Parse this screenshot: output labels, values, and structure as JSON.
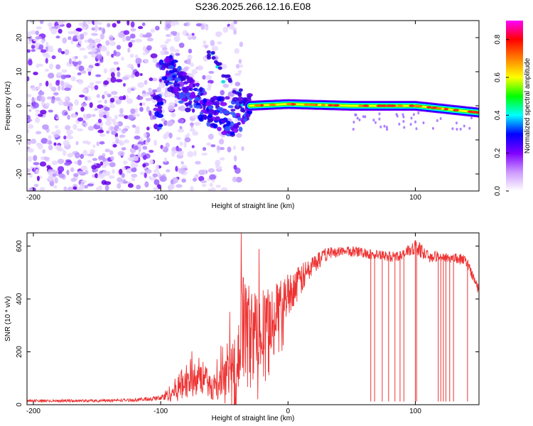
{
  "title": "S236.2025.266.12.16.E08",
  "chart_data": [
    {
      "type": "heatmap",
      "title": "S236.2025.266.12.16.E08",
      "xlabel": "Height of straight line (km)",
      "ylabel": "Frequency (Hz)",
      "xlim": [
        -205,
        150
      ],
      "ylim": [
        -25,
        25
      ],
      "xticks": [
        -200,
        -100,
        0,
        100
      ],
      "yticks": [
        -20,
        -10,
        0,
        10,
        20
      ],
      "colorbar": {
        "label": "Normalized spectral amplitude",
        "range": [
          0.0,
          0.9
        ],
        "ticks": [
          0.0,
          0.2,
          0.4,
          0.6,
          0.8
        ],
        "colors": [
          "#ffffff",
          "#cc99ff",
          "#7f00ff",
          "#0000ff",
          "#00ffff",
          "#00ff00",
          "#ffff00",
          "#ff8000",
          "#ff0000",
          "#ff00ff"
        ]
      },
      "features": {
        "noise_region_x": [
          -205,
          -35
        ],
        "noise_freq_range": [
          -25,
          25
        ],
        "tone_track": [
          {
            "x": -100,
            "f": 12
          },
          {
            "x": -90,
            "f": 9
          },
          {
            "x": -80,
            "f": 4
          },
          {
            "x": -70,
            "f": 1
          },
          {
            "x": -60,
            "f": -1
          },
          {
            "x": -50,
            "f": -3
          },
          {
            "x": -45,
            "f": -4
          },
          {
            "x": -35,
            "f": -2
          },
          {
            "x": -30,
            "f": 0
          },
          {
            "x": 0,
            "f": 0.5
          },
          {
            "x": 50,
            "f": 0
          },
          {
            "x": 100,
            "f": 0
          },
          {
            "x": 150,
            "f": -2
          }
        ],
        "side_branch": [
          {
            "x": -60,
            "f": 15
          },
          {
            "x": -55,
            "f": 12
          },
          {
            "x": -48,
            "f": 8
          },
          {
            "x": -40,
            "f": 4
          },
          {
            "x": -35,
            "f": 1
          }
        ]
      }
    },
    {
      "type": "line",
      "xlabel": "Height of straight line (km)",
      "ylabel": "SNR (10 * v/v)",
      "xlim": [
        -205,
        150
      ],
      "ylim": [
        0,
        650
      ],
      "xticks": [
        -200,
        -100,
        0,
        100
      ],
      "yticks": [
        0,
        200,
        400,
        600
      ],
      "series": [
        {
          "name": "SNR",
          "color": "#ee3333",
          "x": [
            -205,
            -150,
            -120,
            -100,
            -90,
            -80,
            -70,
            -60,
            -50,
            -40,
            -35,
            -30,
            -25,
            -20,
            -10,
            0,
            10,
            20,
            30,
            40,
            50,
            60,
            70,
            80,
            90,
            100,
            110,
            120,
            130,
            140,
            145,
            150
          ],
          "y": [
            15,
            15,
            18,
            25,
            50,
            90,
            120,
            60,
            80,
            150,
            300,
            250,
            280,
            300,
            350,
            420,
            470,
            530,
            570,
            580,
            580,
            575,
            565,
            560,
            565,
            600,
            560,
            560,
            555,
            545,
            490,
            430
          ],
          "noise": [
            5,
            5,
            6,
            10,
            40,
            70,
            80,
            40,
            80,
            120,
            250,
            200,
            160,
            150,
            110,
            80,
            60,
            40,
            25,
            20,
            20,
            20,
            20,
            20,
            20,
            30,
            20,
            20,
            20,
            20,
            20,
            20
          ]
        }
      ],
      "dropouts_x": [
        65,
        68,
        74,
        79,
        84,
        88,
        91,
        100,
        101,
        118,
        120,
        122,
        124,
        127,
        130,
        141
      ]
    }
  ]
}
